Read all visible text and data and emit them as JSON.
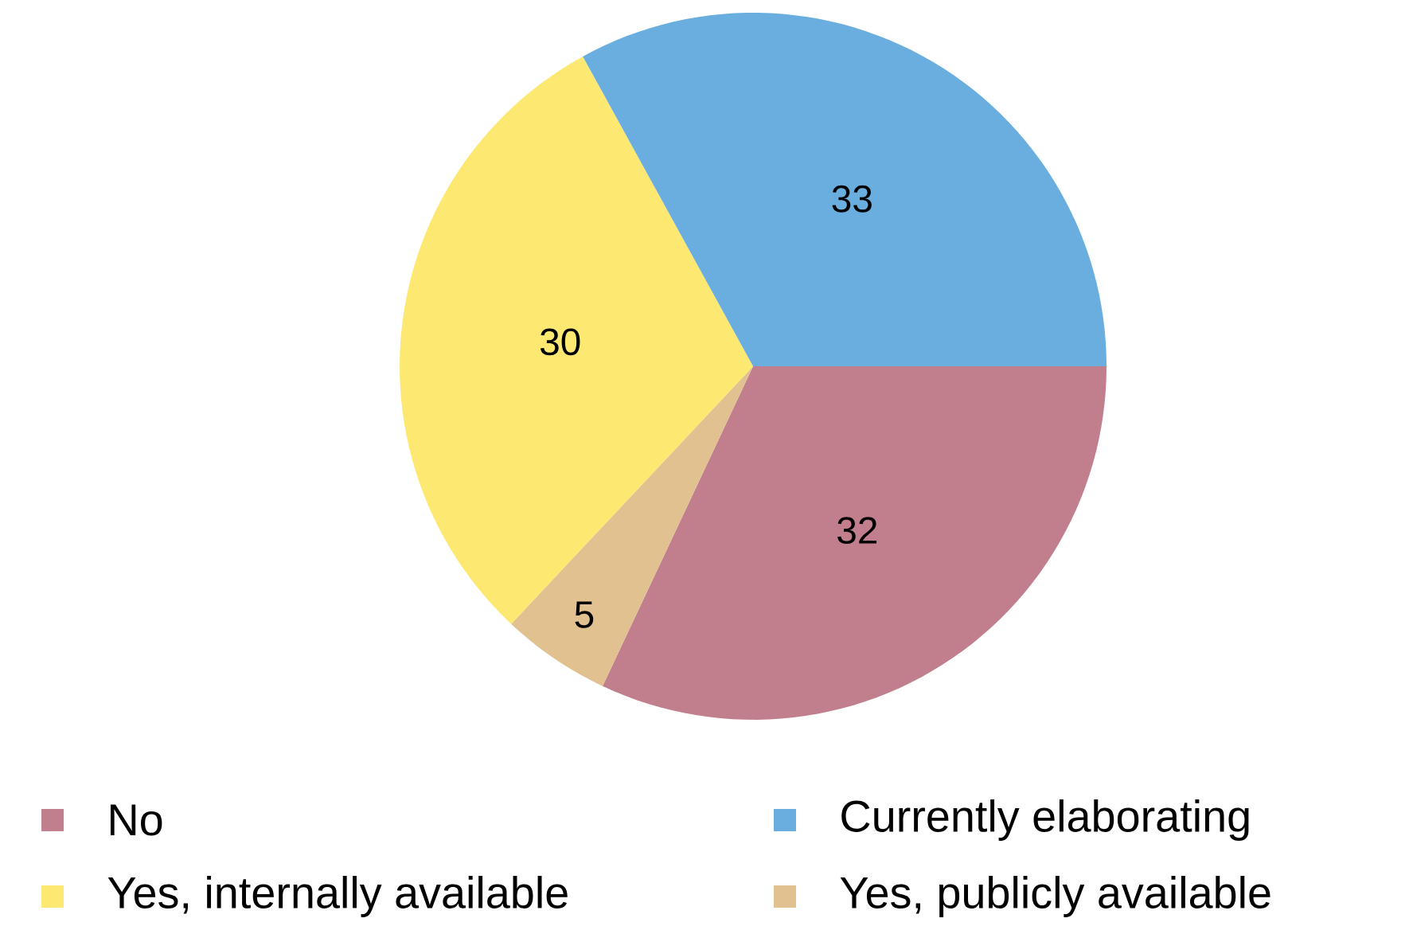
{
  "chart_data": {
    "type": "pie",
    "categories": [
      "No",
      "Yes, publicly available",
      "Yes, internally available",
      "Currently elaborating"
    ],
    "values": [
      32,
      5,
      30,
      33
    ],
    "colors": [
      "#c17f8e",
      "#e0c18f",
      "#fde972",
      "#6aaee0"
    ],
    "data_labels": true,
    "legend": "bottom"
  }
}
